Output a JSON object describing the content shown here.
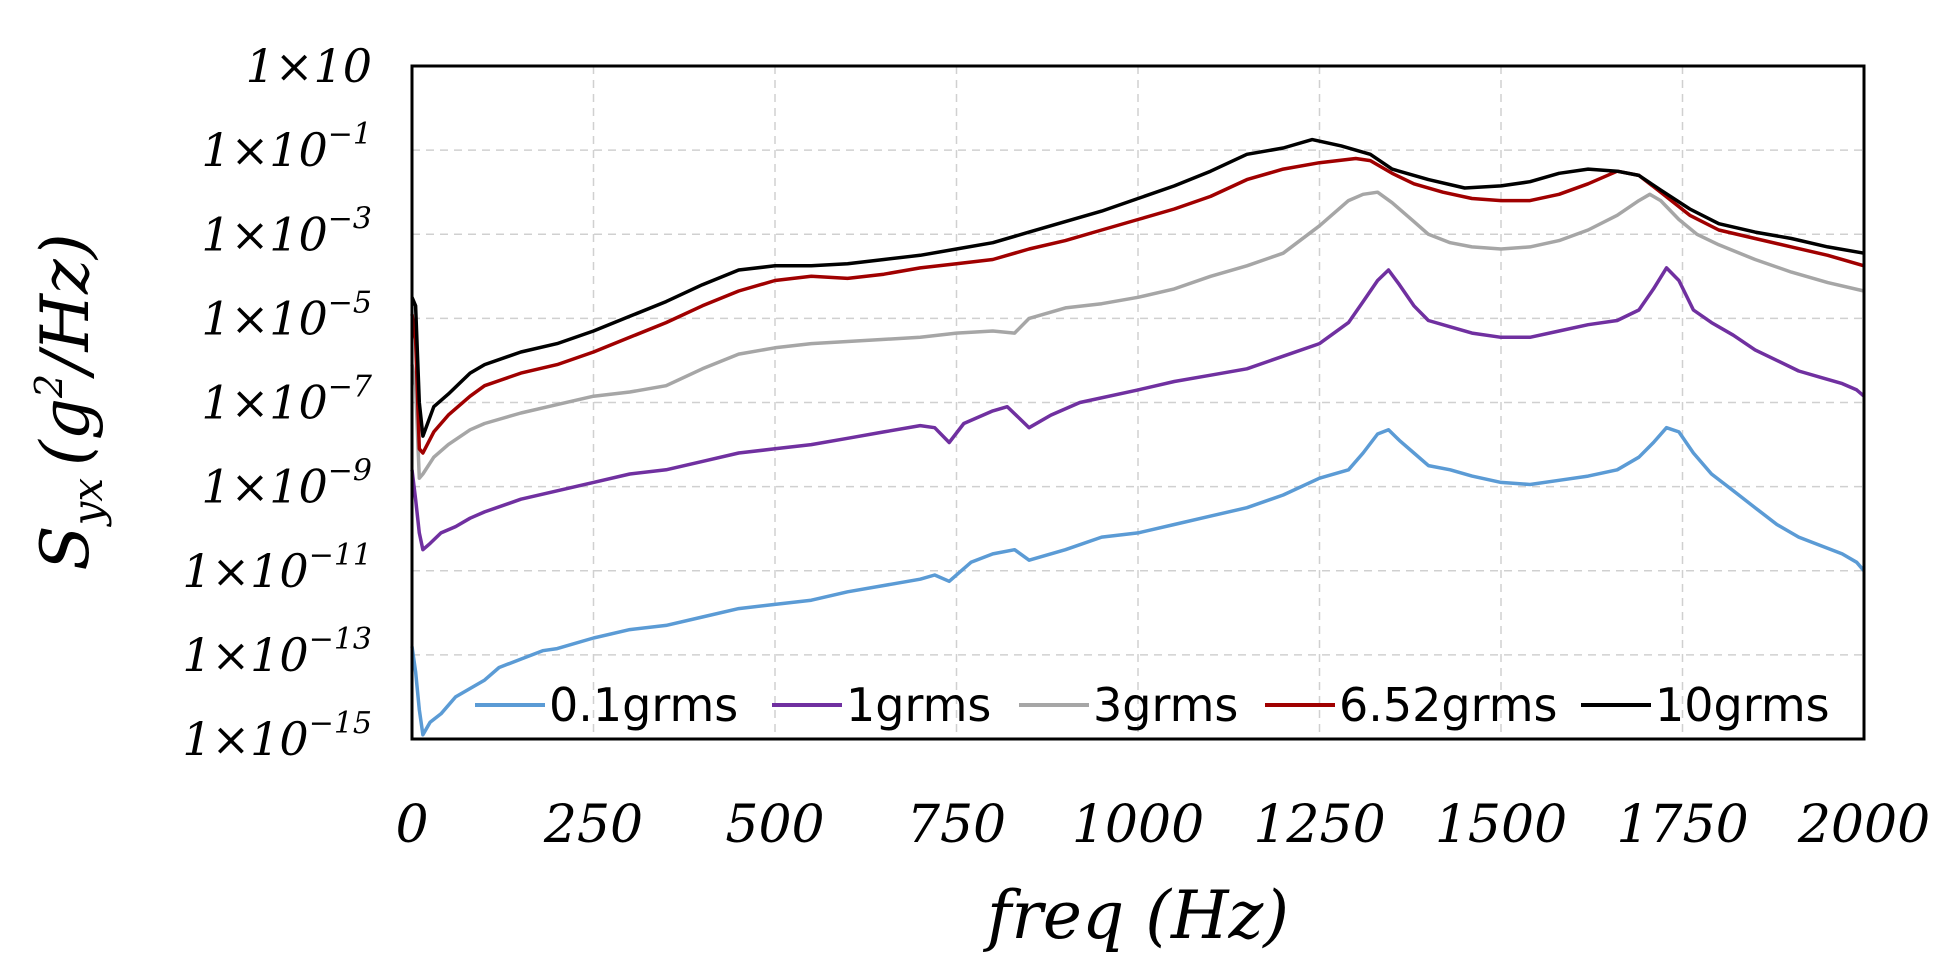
{
  "chart_data": {
    "type": "line",
    "x_label": "freq (Hz)",
    "y_label": {
      "base": "S",
      "subscript": "yx",
      "open": "(",
      "g": "g",
      "sup": "2",
      "unit_tail": "/Hz)"
    },
    "x_ticks": [
      "0",
      "250",
      "500",
      "750",
      "1000",
      "1250",
      "1500",
      "1750",
      "2000"
    ],
    "y_ticks": [
      {
        "mantissa": "1×10",
        "exp": ""
      },
      {
        "mantissa": "1×10",
        "exp": "−1"
      },
      {
        "mantissa": "1×10",
        "exp": "−3"
      },
      {
        "mantissa": "1×10",
        "exp": "−5"
      },
      {
        "mantissa": "1×10",
        "exp": "−7"
      },
      {
        "mantissa": "1×10",
        "exp": "−9"
      },
      {
        "mantissa": "1×10",
        "exp": "−11"
      },
      {
        "mantissa": "1×10",
        "exp": "−13"
      },
      {
        "mantissa": "1×10",
        "exp": "−15"
      }
    ],
    "xlim": [
      0,
      2000
    ],
    "ylim_log10": [
      -15,
      1
    ],
    "y_scale": "log",
    "grid": true,
    "legend_position": "bottom-right",
    "series": [
      {
        "name": "0.1grms",
        "color": "#5b9bd5",
        "points": [
          [
            0,
            -12.8
          ],
          [
            5,
            -13.4
          ],
          [
            10,
            -14.3
          ],
          [
            15,
            -14.9
          ],
          [
            25,
            -14.6
          ],
          [
            40,
            -14.4
          ],
          [
            60,
            -14.0
          ],
          [
            80,
            -13.8
          ],
          [
            100,
            -13.6
          ],
          [
            120,
            -13.3
          ],
          [
            150,
            -13.1
          ],
          [
            180,
            -12.9
          ],
          [
            200,
            -12.85
          ],
          [
            250,
            -12.6
          ],
          [
            300,
            -12.4
          ],
          [
            350,
            -12.3
          ],
          [
            400,
            -12.1
          ],
          [
            450,
            -11.9
          ],
          [
            500,
            -11.8
          ],
          [
            550,
            -11.7
          ],
          [
            600,
            -11.5
          ],
          [
            650,
            -11.35
          ],
          [
            700,
            -11.2
          ],
          [
            720,
            -11.1
          ],
          [
            740,
            -11.25
          ],
          [
            770,
            -10.8
          ],
          [
            800,
            -10.6
          ],
          [
            830,
            -10.5
          ],
          [
            850,
            -10.75
          ],
          [
            900,
            -10.5
          ],
          [
            950,
            -10.2
          ],
          [
            1000,
            -10.1
          ],
          [
            1050,
            -9.9
          ],
          [
            1100,
            -9.7
          ],
          [
            1150,
            -9.5
          ],
          [
            1200,
            -9.2
          ],
          [
            1250,
            -8.8
          ],
          [
            1290,
            -8.6
          ],
          [
            1310,
            -8.2
          ],
          [
            1330,
            -7.75
          ],
          [
            1345,
            -7.65
          ],
          [
            1360,
            -7.9
          ],
          [
            1380,
            -8.2
          ],
          [
            1400,
            -8.5
          ],
          [
            1430,
            -8.6
          ],
          [
            1460,
            -8.75
          ],
          [
            1500,
            -8.9
          ],
          [
            1540,
            -8.95
          ],
          [
            1580,
            -8.85
          ],
          [
            1620,
            -8.75
          ],
          [
            1660,
            -8.6
          ],
          [
            1690,
            -8.3
          ],
          [
            1710,
            -7.95
          ],
          [
            1728,
            -7.6
          ],
          [
            1745,
            -7.7
          ],
          [
            1765,
            -8.2
          ],
          [
            1790,
            -8.7
          ],
          [
            1820,
            -9.1
          ],
          [
            1850,
            -9.5
          ],
          [
            1880,
            -9.9
          ],
          [
            1910,
            -10.2
          ],
          [
            1940,
            -10.4
          ],
          [
            1970,
            -10.6
          ],
          [
            1990,
            -10.8
          ],
          [
            2000,
            -11.0
          ]
        ]
      },
      {
        "name": "1grms",
        "color": "#7030a0",
        "points": [
          [
            0,
            -8.6
          ],
          [
            5,
            -9.3
          ],
          [
            10,
            -10.1
          ],
          [
            15,
            -10.5
          ],
          [
            25,
            -10.35
          ],
          [
            40,
            -10.1
          ],
          [
            60,
            -9.95
          ],
          [
            80,
            -9.75
          ],
          [
            100,
            -9.6
          ],
          [
            150,
            -9.3
          ],
          [
            200,
            -9.1
          ],
          [
            250,
            -8.9
          ],
          [
            300,
            -8.7
          ],
          [
            350,
            -8.6
          ],
          [
            400,
            -8.4
          ],
          [
            450,
            -8.2
          ],
          [
            500,
            -8.1
          ],
          [
            550,
            -8.0
          ],
          [
            600,
            -7.85
          ],
          [
            650,
            -7.7
          ],
          [
            700,
            -7.55
          ],
          [
            720,
            -7.6
          ],
          [
            740,
            -7.95
          ],
          [
            760,
            -7.5
          ],
          [
            800,
            -7.2
          ],
          [
            820,
            -7.1
          ],
          [
            850,
            -7.6
          ],
          [
            880,
            -7.3
          ],
          [
            920,
            -7.0
          ],
          [
            1000,
            -6.7
          ],
          [
            1050,
            -6.5
          ],
          [
            1100,
            -6.35
          ],
          [
            1150,
            -6.2
          ],
          [
            1200,
            -5.9
          ],
          [
            1250,
            -5.6
          ],
          [
            1290,
            -5.1
          ],
          [
            1310,
            -4.6
          ],
          [
            1330,
            -4.1
          ],
          [
            1345,
            -3.85
          ],
          [
            1360,
            -4.2
          ],
          [
            1380,
            -4.7
          ],
          [
            1400,
            -5.05
          ],
          [
            1430,
            -5.2
          ],
          [
            1460,
            -5.35
          ],
          [
            1500,
            -5.45
          ],
          [
            1540,
            -5.45
          ],
          [
            1580,
            -5.3
          ],
          [
            1620,
            -5.15
          ],
          [
            1660,
            -5.05
          ],
          [
            1690,
            -4.8
          ],
          [
            1710,
            -4.3
          ],
          [
            1728,
            -3.8
          ],
          [
            1745,
            -4.1
          ],
          [
            1765,
            -4.8
          ],
          [
            1790,
            -5.1
          ],
          [
            1820,
            -5.4
          ],
          [
            1850,
            -5.75
          ],
          [
            1880,
            -6.0
          ],
          [
            1910,
            -6.25
          ],
          [
            1940,
            -6.4
          ],
          [
            1970,
            -6.55
          ],
          [
            1990,
            -6.7
          ],
          [
            2000,
            -6.85
          ]
        ]
      },
      {
        "name": "3grms",
        "color": "#a6a6a6",
        "points": [
          [
            0,
            -6.1
          ],
          [
            5,
            -6.6
          ],
          [
            10,
            -8.8
          ],
          [
            15,
            -8.7
          ],
          [
            30,
            -8.3
          ],
          [
            50,
            -8.0
          ],
          [
            80,
            -7.65
          ],
          [
            100,
            -7.5
          ],
          [
            150,
            -7.25
          ],
          [
            200,
            -7.05
          ],
          [
            250,
            -6.85
          ],
          [
            300,
            -6.75
          ],
          [
            350,
            -6.6
          ],
          [
            400,
            -6.2
          ],
          [
            450,
            -5.85
          ],
          [
            500,
            -5.7
          ],
          [
            550,
            -5.6
          ],
          [
            600,
            -5.55
          ],
          [
            650,
            -5.5
          ],
          [
            700,
            -5.45
          ],
          [
            750,
            -5.35
          ],
          [
            800,
            -5.3
          ],
          [
            830,
            -5.35
          ],
          [
            850,
            -5.0
          ],
          [
            900,
            -4.75
          ],
          [
            950,
            -4.65
          ],
          [
            1000,
            -4.5
          ],
          [
            1050,
            -4.3
          ],
          [
            1100,
            -4.0
          ],
          [
            1150,
            -3.75
          ],
          [
            1200,
            -3.45
          ],
          [
            1250,
            -2.8
          ],
          [
            1290,
            -2.2
          ],
          [
            1310,
            -2.05
          ],
          [
            1330,
            -2.0
          ],
          [
            1350,
            -2.25
          ],
          [
            1380,
            -2.7
          ],
          [
            1400,
            -3.0
          ],
          [
            1430,
            -3.2
          ],
          [
            1460,
            -3.3
          ],
          [
            1500,
            -3.35
          ],
          [
            1540,
            -3.3
          ],
          [
            1580,
            -3.15
          ],
          [
            1620,
            -2.9
          ],
          [
            1660,
            -2.55
          ],
          [
            1690,
            -2.2
          ],
          [
            1705,
            -2.05
          ],
          [
            1720,
            -2.2
          ],
          [
            1745,
            -2.65
          ],
          [
            1770,
            -3.0
          ],
          [
            1800,
            -3.25
          ],
          [
            1850,
            -3.6
          ],
          [
            1900,
            -3.9
          ],
          [
            1950,
            -4.15
          ],
          [
            2000,
            -4.35
          ]
        ]
      },
      {
        "name": "6.52grms",
        "color": "#a00000",
        "points": [
          [
            0,
            -4.9
          ],
          [
            5,
            -5.5
          ],
          [
            10,
            -8.1
          ],
          [
            15,
            -8.2
          ],
          [
            30,
            -7.7
          ],
          [
            50,
            -7.3
          ],
          [
            80,
            -6.85
          ],
          [
            100,
            -6.6
          ],
          [
            150,
            -6.3
          ],
          [
            200,
            -6.1
          ],
          [
            250,
            -5.8
          ],
          [
            300,
            -5.45
          ],
          [
            350,
            -5.1
          ],
          [
            400,
            -4.7
          ],
          [
            450,
            -4.35
          ],
          [
            500,
            -4.1
          ],
          [
            550,
            -4.0
          ],
          [
            600,
            -4.05
          ],
          [
            650,
            -3.95
          ],
          [
            700,
            -3.8
          ],
          [
            750,
            -3.7
          ],
          [
            800,
            -3.6
          ],
          [
            850,
            -3.35
          ],
          [
            900,
            -3.15
          ],
          [
            950,
            -2.9
          ],
          [
            1000,
            -2.65
          ],
          [
            1050,
            -2.4
          ],
          [
            1100,
            -2.1
          ],
          [
            1150,
            -1.7
          ],
          [
            1200,
            -1.45
          ],
          [
            1250,
            -1.3
          ],
          [
            1300,
            -1.2
          ],
          [
            1320,
            -1.25
          ],
          [
            1350,
            -1.55
          ],
          [
            1380,
            -1.8
          ],
          [
            1420,
            -2.0
          ],
          [
            1460,
            -2.15
          ],
          [
            1500,
            -2.2
          ],
          [
            1540,
            -2.2
          ],
          [
            1580,
            -2.05
          ],
          [
            1620,
            -1.8
          ],
          [
            1660,
            -1.5
          ],
          [
            1690,
            -1.6
          ],
          [
            1720,
            -2.0
          ],
          [
            1760,
            -2.55
          ],
          [
            1800,
            -2.9
          ],
          [
            1850,
            -3.1
          ],
          [
            1900,
            -3.3
          ],
          [
            1950,
            -3.5
          ],
          [
            2000,
            -3.75
          ]
        ]
      },
      {
        "name": "10grms",
        "color": "#000000",
        "points": [
          [
            0,
            -4.5
          ],
          [
            5,
            -4.7
          ],
          [
            10,
            -7.0
          ],
          [
            15,
            -7.8
          ],
          [
            30,
            -7.1
          ],
          [
            50,
            -6.8
          ],
          [
            80,
            -6.3
          ],
          [
            100,
            -6.1
          ],
          [
            150,
            -5.8
          ],
          [
            200,
            -5.6
          ],
          [
            250,
            -5.3
          ],
          [
            300,
            -4.95
          ],
          [
            350,
            -4.6
          ],
          [
            400,
            -4.2
          ],
          [
            450,
            -3.85
          ],
          [
            500,
            -3.75
          ],
          [
            550,
            -3.75
          ],
          [
            600,
            -3.7
          ],
          [
            650,
            -3.6
          ],
          [
            700,
            -3.5
          ],
          [
            750,
            -3.35
          ],
          [
            800,
            -3.2
          ],
          [
            850,
            -2.95
          ],
          [
            900,
            -2.7
          ],
          [
            950,
            -2.45
          ],
          [
            1000,
            -2.15
          ],
          [
            1050,
            -1.85
          ],
          [
            1100,
            -1.5
          ],
          [
            1150,
            -1.1
          ],
          [
            1200,
            -0.95
          ],
          [
            1240,
            -0.75
          ],
          [
            1280,
            -0.9
          ],
          [
            1320,
            -1.1
          ],
          [
            1350,
            -1.45
          ],
          [
            1400,
            -1.7
          ],
          [
            1450,
            -1.9
          ],
          [
            1500,
            -1.85
          ],
          [
            1540,
            -1.75
          ],
          [
            1580,
            -1.55
          ],
          [
            1620,
            -1.45
          ],
          [
            1660,
            -1.5
          ],
          [
            1690,
            -1.6
          ],
          [
            1720,
            -1.95
          ],
          [
            1760,
            -2.4
          ],
          [
            1800,
            -2.75
          ],
          [
            1850,
            -2.95
          ],
          [
            1900,
            -3.1
          ],
          [
            1950,
            -3.3
          ],
          [
            2000,
            -3.45
          ]
        ]
      }
    ]
  }
}
